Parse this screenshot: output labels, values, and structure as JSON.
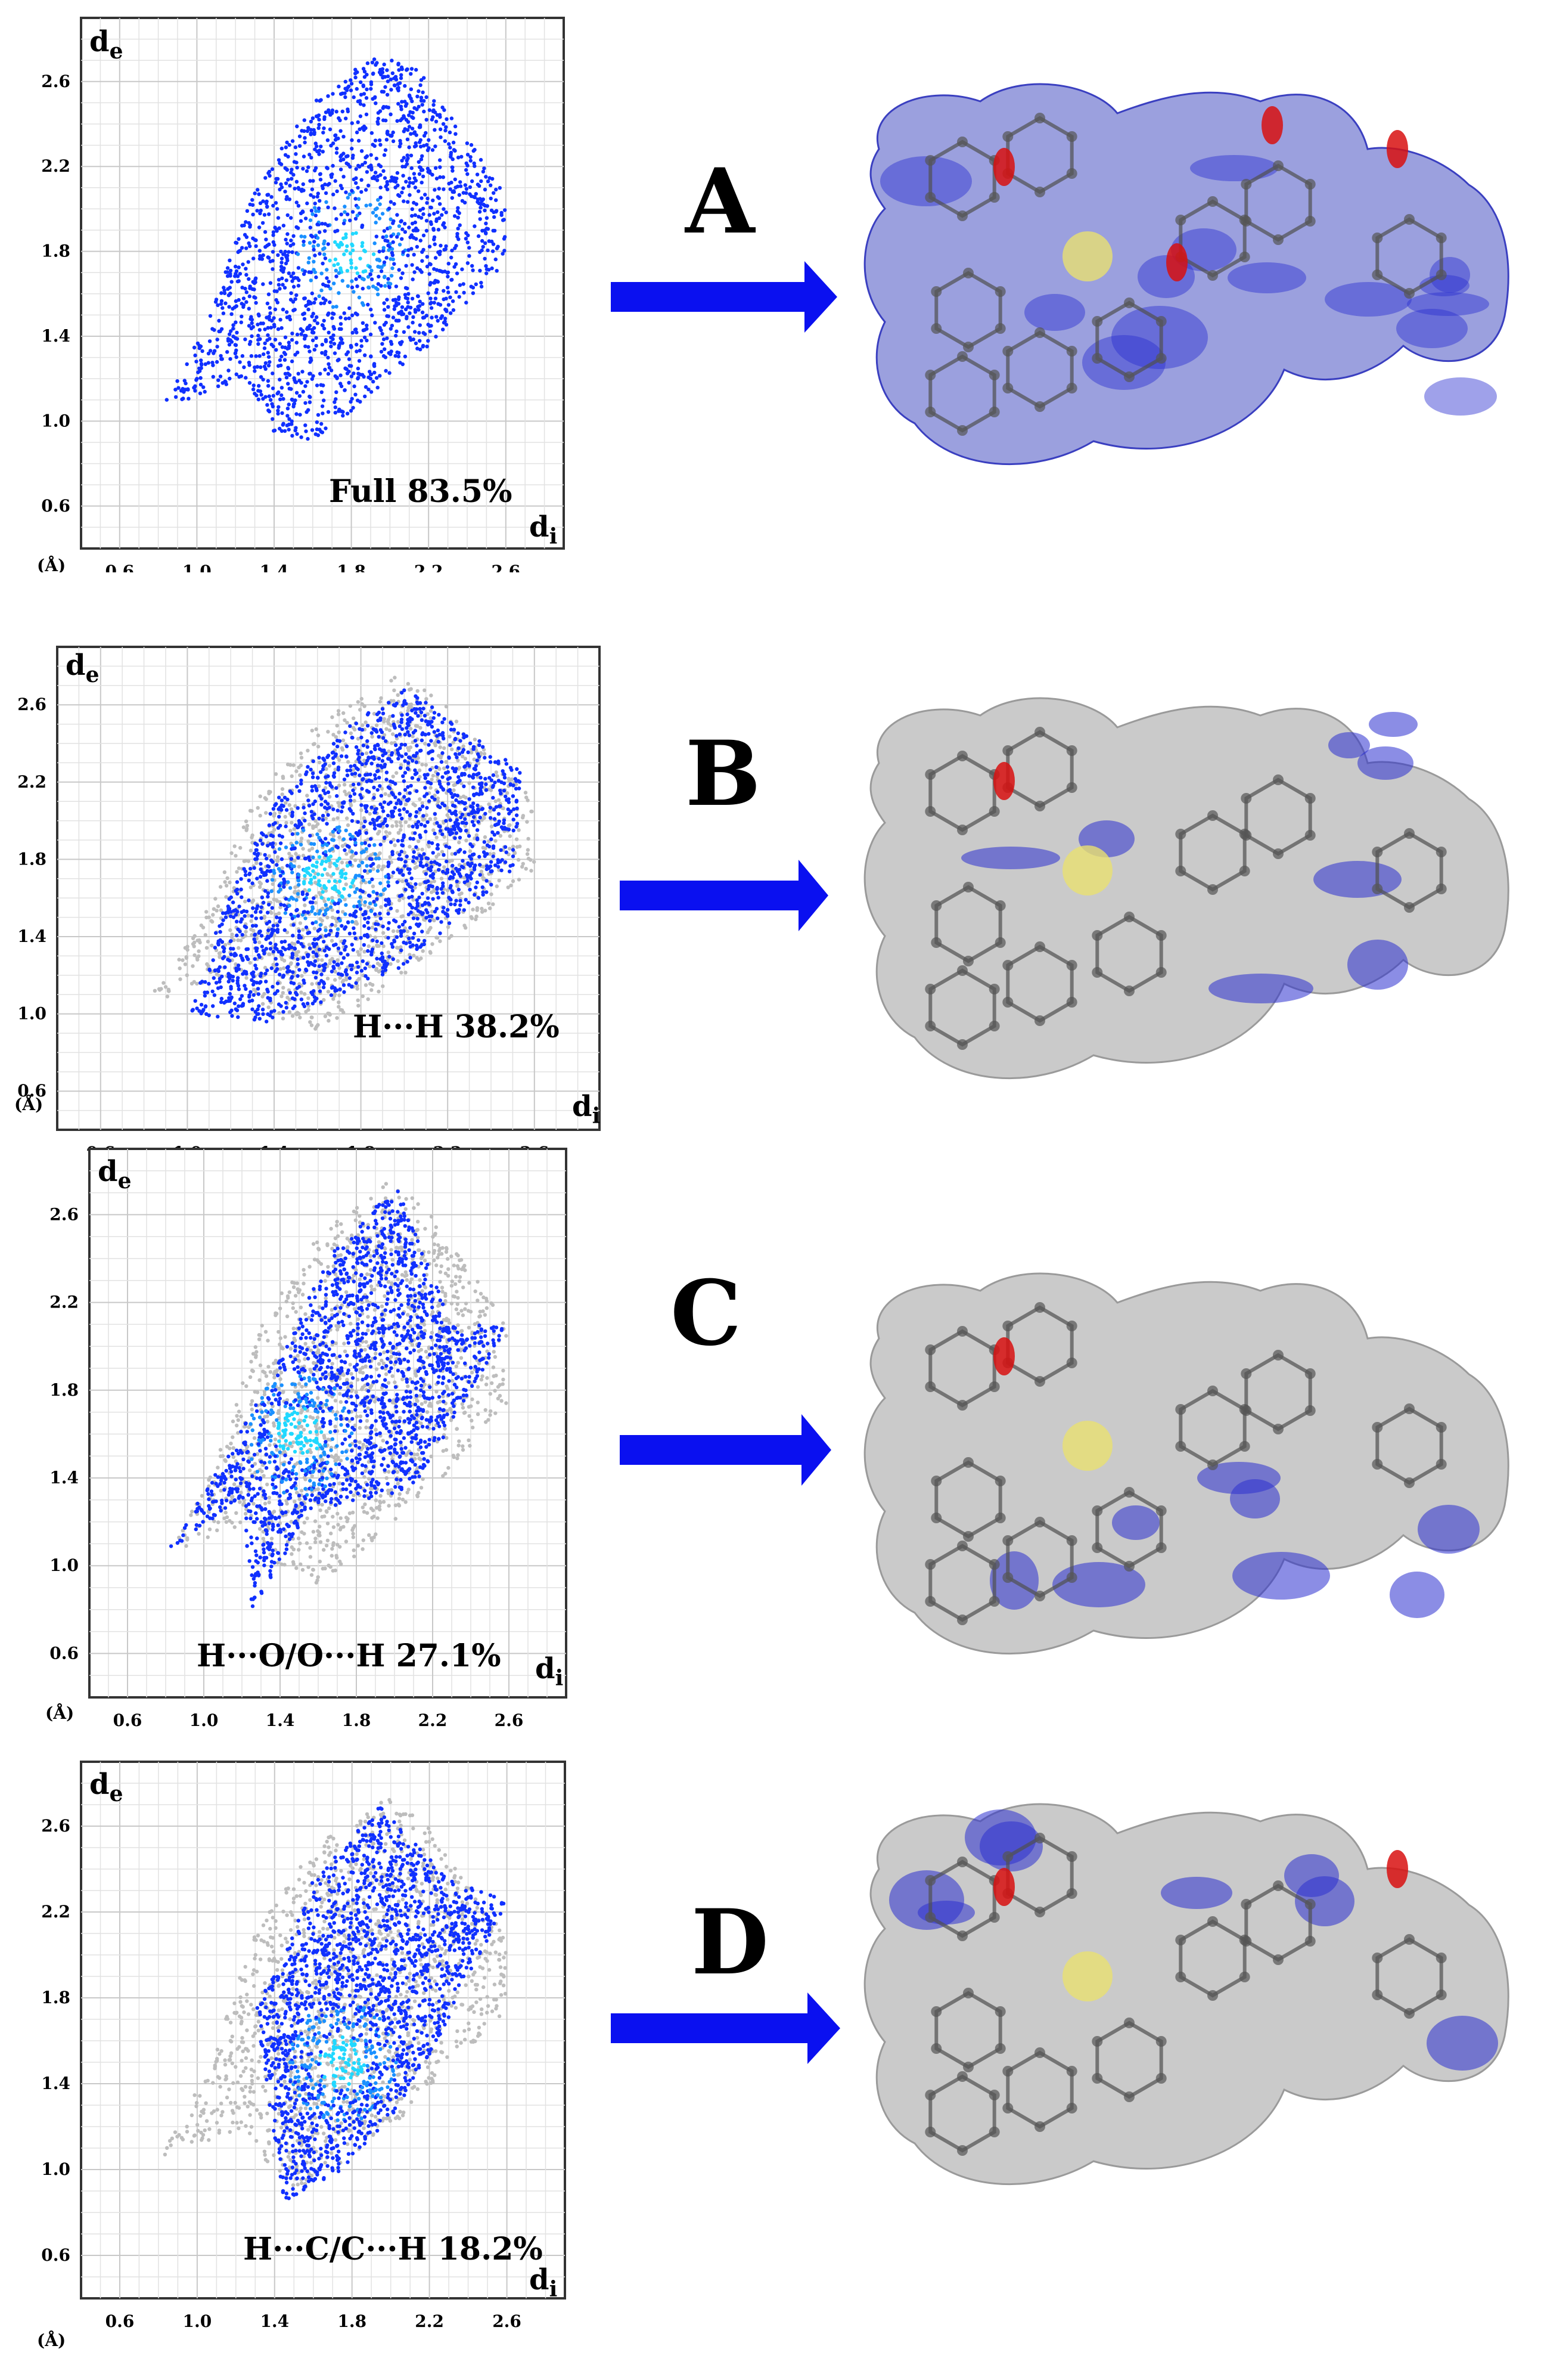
{
  "panels": [
    {
      "letter": "A",
      "annotation": "Full 83.5%",
      "ylabel": "d",
      "ylabel_sub": "e",
      "xlabel": "d",
      "xlabel_sub": "i",
      "unit": "(Å)",
      "ticks": [
        "0.6",
        "1.0",
        "1.4",
        "1.8",
        "2.2",
        "2.6"
      ],
      "tick_values": [
        0.6,
        1.0,
        1.4,
        1.8,
        2.2,
        2.6
      ],
      "show_full_gray": false
    },
    {
      "letter": "B",
      "annotation": "H···H 38.2%",
      "ylabel": "d",
      "ylabel_sub": "e",
      "xlabel": "d",
      "xlabel_sub": "i",
      "unit": "(Å)",
      "ticks": [
        "0.6",
        "1.0",
        "1.4",
        "1.8",
        "2.2",
        "2.6"
      ],
      "tick_values": [
        0.6,
        1.0,
        1.4,
        1.8,
        2.2,
        2.6
      ],
      "show_full_gray": true
    },
    {
      "letter": "C",
      "annotation": "H···O/O···H 27.1%",
      "ylabel": "d",
      "ylabel_sub": "e",
      "xlabel": "d",
      "xlabel_sub": "i",
      "unit": "(Å)",
      "ticks": [
        "0.6",
        "1.0",
        "1.4",
        "1.8",
        "2.2",
        "2.6"
      ],
      "tick_values": [
        0.6,
        1.0,
        1.4,
        1.8,
        2.2,
        2.6
      ],
      "show_full_gray": true
    },
    {
      "letter": "D",
      "annotation": "H···C/C···H 18.2%",
      "ylabel": "d",
      "ylabel_sub": "e",
      "xlabel": "d",
      "xlabel_sub": "i",
      "unit": "(Å)",
      "ticks": [
        "0.6",
        "1.0",
        "1.4",
        "1.8",
        "2.2",
        "2.6"
      ],
      "tick_values": [
        0.6,
        1.0,
        1.4,
        1.8,
        2.2,
        2.6
      ],
      "show_full_gray": true
    }
  ],
  "colors": {
    "points_blue": "#1030ff",
    "points_cyan": "#20d8ff",
    "points_gray": "#bdbdbd",
    "arrow": "#0a10f0",
    "surface_blue": "#2b2fd0",
    "surface_gray": "#b8b8b8",
    "hotspot_red": "#d81010"
  },
  "chart_data": [
    {
      "type": "scatter",
      "title": "Full 83.5%",
      "xlabel": "di (Å)",
      "ylabel": "de (Å)",
      "xlim": [
        0.4,
        2.9
      ],
      "ylim": [
        0.4,
        2.9
      ],
      "grid": true,
      "series": [
        {
          "name": "Full 83.5%",
          "region": [
            [
              0.8,
              1.05
            ],
            [
              1.25,
              1.2
            ],
            [
              1.4,
              0.95
            ],
            [
              1.6,
              0.9
            ],
            [
              2.2,
              1.35
            ],
            [
              2.6,
              1.75
            ],
            [
              2.6,
              2.1
            ],
            [
              2.35,
              2.4
            ],
            [
              2.15,
              2.65
            ],
            [
              1.95,
              2.75
            ],
            [
              1.6,
              2.5
            ],
            [
              1.3,
              2.1
            ],
            [
              1.05,
              1.45
            ]
          ],
          "peak": [
            1.8,
            1.8
          ]
        }
      ]
    },
    {
      "type": "scatter",
      "title": "H···H 38.2%",
      "xlabel": "di (Å)",
      "ylabel": "de (Å)",
      "xlim": [
        0.4,
        2.9
      ],
      "ylim": [
        0.4,
        2.9
      ],
      "grid": true,
      "series": [
        {
          "name": "H···H 38.2%",
          "region": [
            [
              1.0,
              1.0
            ],
            [
              1.4,
              0.95
            ],
            [
              2.0,
              1.25
            ],
            [
              2.5,
              1.75
            ],
            [
              2.55,
              2.25
            ],
            [
              2.3,
              2.45
            ],
            [
              2.0,
              2.7
            ],
            [
              1.7,
              2.45
            ],
            [
              1.4,
              2.1
            ],
            [
              1.15,
              1.5
            ]
          ],
          "peak": [
            1.65,
            1.7
          ]
        }
      ]
    },
    {
      "type": "scatter",
      "title": "H···O/O···H 27.1%",
      "xlabel": "di (Å)",
      "ylabel": "de (Å)",
      "xlim": [
        0.4,
        2.9
      ],
      "ylim": [
        0.4,
        2.9
      ],
      "grid": true,
      "series": [
        {
          "name": "H···O/O···H 27.1%",
          "region": [
            [
              0.8,
              1.05
            ],
            [
              1.2,
              1.3
            ],
            [
              1.25,
              0.78
            ],
            [
              1.55,
              1.25
            ],
            [
              2.1,
              1.35
            ],
            [
              2.6,
              2.1
            ],
            [
              2.3,
              2.1
            ],
            [
              2.0,
              2.75
            ],
            [
              1.65,
              2.4
            ],
            [
              1.35,
              1.85
            ],
            [
              1.05,
              1.4
            ]
          ],
          "peak": [
            1.5,
            1.6
          ]
        }
      ]
    },
    {
      "type": "scatter",
      "title": "H···C/C···H 18.2%",
      "xlabel": "di (Å)",
      "ylabel": "de (Å)",
      "xlim": [
        0.4,
        2.9
      ],
      "ylim": [
        0.4,
        2.9
      ],
      "grid": true,
      "series": [
        {
          "name": "H···C/C···H 18.2%",
          "region": [
            [
              1.3,
              1.75
            ],
            [
              1.45,
              0.85
            ],
            [
              1.75,
              1.0
            ],
            [
              2.1,
              1.35
            ],
            [
              2.6,
              2.25
            ],
            [
              2.3,
              2.35
            ],
            [
              1.95,
              2.7
            ],
            [
              1.6,
              2.35
            ],
            [
              1.45,
              2.0
            ]
          ],
          "peak": [
            1.75,
            1.5
          ]
        }
      ]
    }
  ]
}
